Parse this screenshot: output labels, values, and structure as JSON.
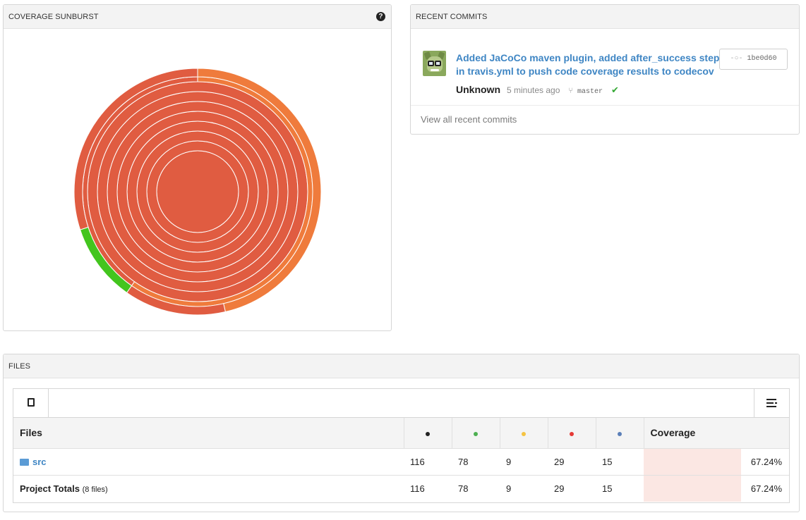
{
  "sunburst": {
    "title": "COVERAGE SUNBURST",
    "help_icon": "question-circle-icon",
    "colors": {
      "red": "#e05c41",
      "orange": "#ef7b3c",
      "amber": "#e8a92a",
      "green": "#43c51e",
      "ring_stroke": "#ffffff"
    }
  },
  "commits": {
    "title": "RECENT COMMITS",
    "items": [
      {
        "message": "Added JaCoCo maven plugin, added after_success step in travis.yml to push code coverage results to codecov",
        "sha": "1be0d60",
        "author": "Unknown",
        "time": "5 minutes ago",
        "branch": "master",
        "status": "success"
      }
    ],
    "view_all": "View all recent commits"
  },
  "files": {
    "title": "FILES",
    "toolbar": {
      "left_icon": "book-icon",
      "right_icon": "list-icon"
    },
    "columns": [
      {
        "label": "Files"
      },
      {
        "dot_color": "#222222"
      },
      {
        "dot_color": "#4caf50"
      },
      {
        "dot_color": "#f5c342"
      },
      {
        "dot_color": "#e53935"
      },
      {
        "dot_color": "#5b7fb8"
      },
      {
        "label": "Coverage"
      }
    ],
    "rows": [
      {
        "name": "src",
        "icon": "folder-icon",
        "v1": "116",
        "v2": "78",
        "v3": "9",
        "v4": "29",
        "v5": "15",
        "coverage": "67.24%",
        "coverage_value": 67.24
      }
    ],
    "totals": {
      "label": "Project Totals",
      "note": "(8 files)",
      "v1": "116",
      "v2": "78",
      "v3": "9",
      "v4": "29",
      "v5": "15",
      "coverage": "67.24%",
      "coverage_value": 67.24
    }
  }
}
